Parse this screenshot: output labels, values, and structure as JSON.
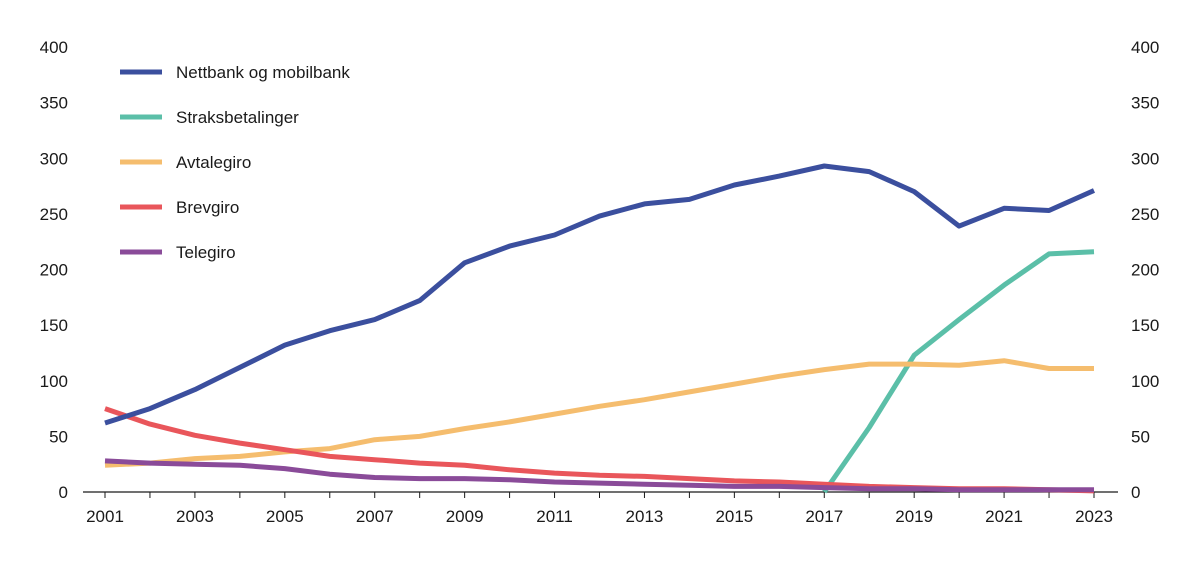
{
  "chart_data": {
    "type": "line",
    "title": "",
    "xlabel": "",
    "ylabel": "",
    "ylim": [
      0,
      400
    ],
    "yticks": [
      0,
      50,
      100,
      150,
      200,
      250,
      300,
      350,
      400
    ],
    "xlim": [
      2001,
      2023
    ],
    "xtick_labels": [
      "2001",
      "2003",
      "2005",
      "2007",
      "2009",
      "2011",
      "2013",
      "2015",
      "2017",
      "2019",
      "2021",
      "2023"
    ],
    "secondary_y_axis": "mirrored right axis, same scale",
    "grid": false,
    "legend_placement": "top-left",
    "x": [
      2001,
      2002,
      2003,
      2004,
      2005,
      2006,
      2007,
      2008,
      2009,
      2010,
      2011,
      2012,
      2013,
      2014,
      2015,
      2016,
      2017,
      2018,
      2019,
      2020,
      2021,
      2022,
      2023
    ],
    "series": [
      {
        "name": "Nettbank og mobilbank",
        "color": "#3b4f9e",
        "values": [
          62,
          75,
          92,
          112,
          132,
          145,
          155,
          172,
          206,
          221,
          231,
          248,
          259,
          263,
          276,
          284,
          293,
          288,
          270,
          239,
          255,
          253,
          271
        ]
      },
      {
        "name": "Straksbetalinger",
        "color": "#5bbfa8",
        "values": [
          null,
          null,
          null,
          null,
          null,
          null,
          null,
          null,
          null,
          null,
          null,
          null,
          null,
          null,
          null,
          null,
          0,
          58,
          123,
          155,
          186,
          214,
          216
        ]
      },
      {
        "name": "Avtalegiro",
        "color": "#f5bd6e",
        "values": [
          24,
          26,
          30,
          32,
          36,
          39,
          47,
          50,
          57,
          63,
          70,
          77,
          83,
          90,
          97,
          104,
          110,
          115,
          115,
          114,
          118,
          111,
          111
        ]
      },
      {
        "name": "Brevgiro",
        "color": "#e9565b",
        "values": [
          75,
          61,
          51,
          44,
          38,
          32,
          29,
          26,
          24,
          20,
          17,
          15,
          14,
          12,
          10,
          9,
          7,
          5,
          4,
          3,
          3,
          2,
          1
        ]
      },
      {
        "name": "Telegiro",
        "color": "#8a4b99",
        "values": [
          28,
          26,
          25,
          24,
          21,
          16,
          13,
          12,
          12,
          11,
          9,
          8,
          7,
          6,
          5,
          5,
          4,
          3,
          3,
          2,
          2,
          2,
          2
        ]
      }
    ]
  }
}
